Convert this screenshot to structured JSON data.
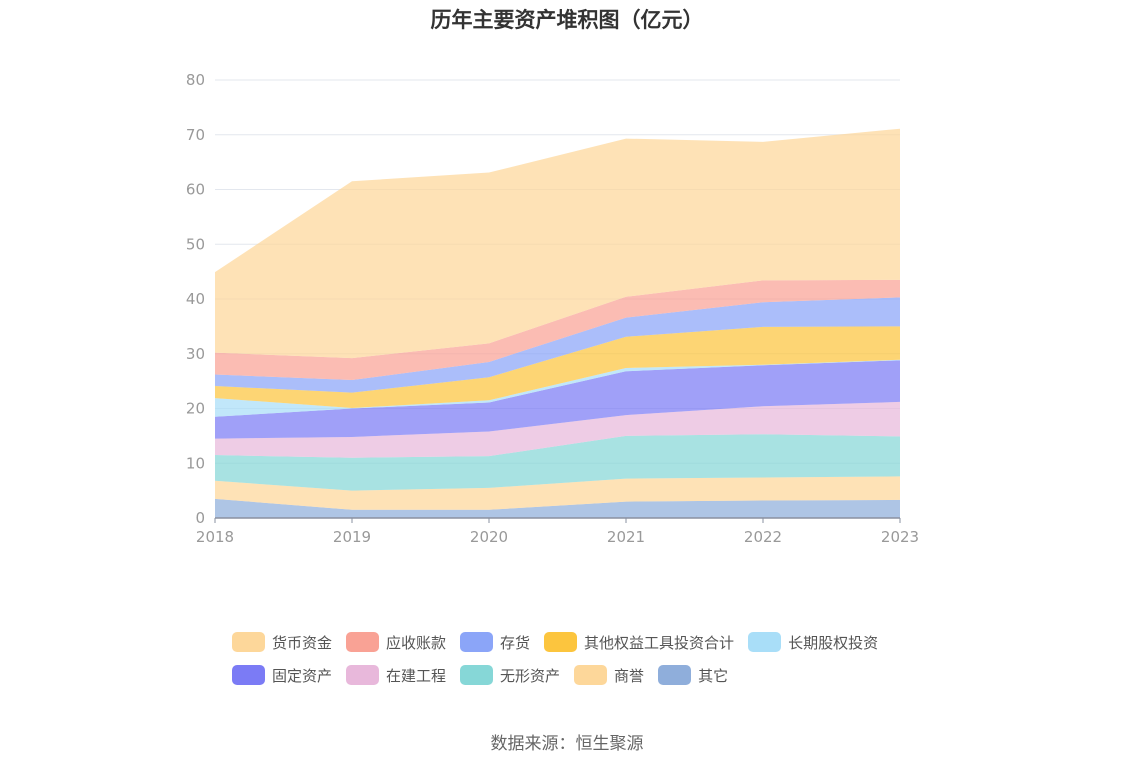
{
  "chart_data": {
    "type": "area",
    "stacked": true,
    "title": "历年主要资产堆积图（亿元）",
    "categories": [
      "2018",
      "2019",
      "2020",
      "2021",
      "2022",
      "2023"
    ],
    "ylim": [
      0,
      80
    ],
    "yticks": [
      0,
      10,
      20,
      30,
      40,
      50,
      60,
      70,
      80
    ],
    "grid": true,
    "legend_position": "bottom",
    "series": [
      {
        "name": "其它",
        "color": "#8FAEDB",
        "values": [
          3.5,
          1.5,
          1.5,
          3.0,
          3.2,
          3.3
        ]
      },
      {
        "name": "商誉",
        "color": "#FDD79A",
        "values": [
          3.3,
          3.5,
          4.0,
          4.2,
          4.2,
          4.3
        ]
      },
      {
        "name": "无形资产",
        "color": "#86D7D7",
        "values": [
          4.7,
          6.0,
          5.8,
          7.8,
          7.9,
          7.3
        ]
      },
      {
        "name": "在建工程",
        "color": "#E8B8DB",
        "values": [
          3.0,
          3.8,
          4.5,
          3.8,
          5.1,
          6.3
        ]
      },
      {
        "name": "固定资产",
        "color": "#7B7BF5",
        "values": [
          4.0,
          5.2,
          5.3,
          8.0,
          7.5,
          7.6
        ]
      },
      {
        "name": "长期股权投资",
        "color": "#A9DEF8",
        "values": [
          3.4,
          0.1,
          0.4,
          0.6,
          0.1,
          0.1
        ]
      },
      {
        "name": "其他权益工具投资合计",
        "color": "#FCC53E",
        "values": [
          2.2,
          2.8,
          4.2,
          5.7,
          6.9,
          6.1
        ]
      },
      {
        "name": "存货",
        "color": "#8BA5F8",
        "values": [
          2.1,
          2.3,
          2.8,
          3.5,
          4.5,
          5.3
        ]
      },
      {
        "name": "应收账款",
        "color": "#F9A295",
        "values": [
          4.0,
          4.0,
          3.4,
          3.8,
          4.0,
          3.2
        ]
      },
      {
        "name": "货币资金",
        "color": "#FDD79A",
        "values": [
          14.7,
          32.3,
          31.2,
          28.9,
          25.3,
          27.6
        ]
      }
    ]
  },
  "legend": [
    {
      "label": "货币资金",
      "color": "#FDD79A"
    },
    {
      "label": "应收账款",
      "color": "#F9A295"
    },
    {
      "label": "存货",
      "color": "#8BA5F8"
    },
    {
      "label": "其他权益工具投资合计",
      "color": "#FCC53E"
    },
    {
      "label": "长期股权投资",
      "color": "#A9DEF8"
    },
    {
      "label": "固定资产",
      "color": "#7B7BF5"
    },
    {
      "label": "在建工程",
      "color": "#E8B8DB"
    },
    {
      "label": "无形资产",
      "color": "#86D7D7"
    },
    {
      "label": "商誉",
      "color": "#FDD79A"
    },
    {
      "label": "其它",
      "color": "#8FAEDB"
    }
  ],
  "source": "数据来源：恒生聚源"
}
